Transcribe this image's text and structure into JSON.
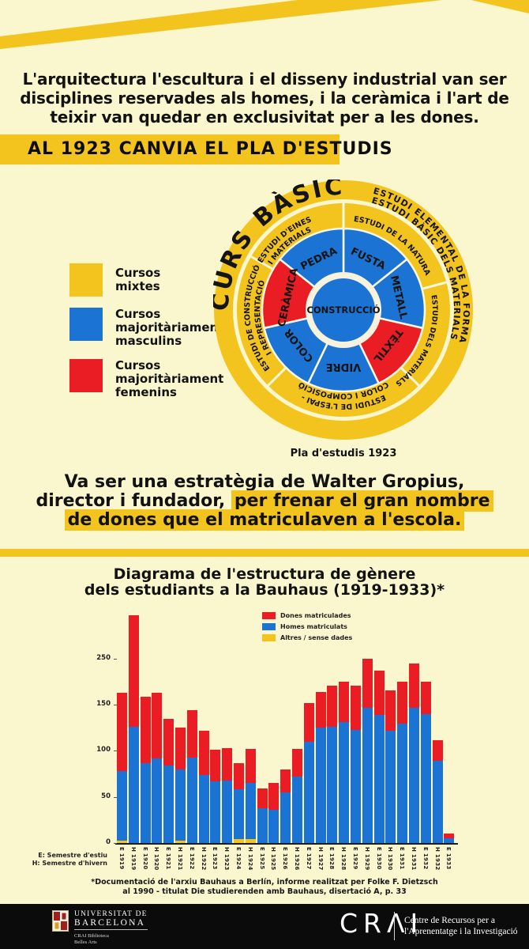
{
  "palette": {
    "background": "#FAF6CE",
    "gold": "#F2C41D",
    "blue": "#1B73D3",
    "red": "#EA1C24",
    "black": "#0b0b0b"
  },
  "intro": {
    "l1": "L'arquitectura l'escultura i el disseny industrial van ser",
    "l2": "disciplines reservades als homes, i la ceràmica i l'art de",
    "l3": "teixir van quedar en exclusivitat per a les dones."
  },
  "headline": "AL 1923 CANVIA EL PLA D'ESTUDIS",
  "legend": {
    "items": [
      {
        "label": "Cursos mixtes",
        "color": "#F2C41D"
      },
      {
        "label": "Cursos majoritàriament masculins",
        "color": "#1B73D3"
      },
      {
        "label": "Cursos majoritàriament femenins",
        "color": "#EA1C24"
      }
    ]
  },
  "wheel": {
    "outer_title": "CURS BÀSIC",
    "outer_arc_l1": "ESTUDI ELEMENTAL DE LA FORMA",
    "outer_arc_l2": "ESTUDI BÀSIC DELS MATERIALS",
    "ring": {
      "eines_l1": "ESTUDI D'EINES",
      "eines_l2": "I MATERIALS",
      "natura": "ESTUDI DE LA NATURA",
      "materials": "ESTUDI DELS MATERIALS",
      "espai_l1": "ESTUDI DE L'ESPAI -",
      "espai_l2": "COLOR I COMPOSICIÓ",
      "construccio_l1": "ESTUDI DE CONSTRUCCIÓ",
      "construccio_l2": "I REPRESENTACIÓ"
    },
    "segments": [
      {
        "label": "FUSTA",
        "type": "masculí"
      },
      {
        "label": "METALL",
        "type": "masculí"
      },
      {
        "label": "TÈXTIL",
        "type": "femení"
      },
      {
        "label": "VIDRE",
        "type": "masculí"
      },
      {
        "label": "COLOR",
        "type": "masculí"
      },
      {
        "label": "CERÀMICA",
        "type": "femení"
      },
      {
        "label": "PEDRA",
        "type": "masculí"
      }
    ],
    "center": "CONSTRUCCIÓ",
    "caption": "Pla d'estudis 1923"
  },
  "strategy": {
    "l1": "Va ser una estratègia de Walter Gropius,",
    "l2_plain": "director i fundador, ",
    "l2_hl": "per frenar el gran nombre",
    "l3_hl": "de dones que el matriculaven a l'escola."
  },
  "chart_data": {
    "type": "bar",
    "stacked": true,
    "title_l1": "Diagrama de l'estructura de gènere",
    "title_l2": "dels estudiants a la Bauhaus (1919-1933)*",
    "categories": [
      "E 1919",
      "H 1919",
      "E 1920",
      "H 1920",
      "E 1921",
      "H 1921",
      "E 1922",
      "H 1922",
      "E 1923",
      "H 1923",
      "E 1924",
      "H 1924",
      "E 1925",
      "H 1925",
      "E 1926",
      "H 1926",
      "E 1927",
      "H 1927",
      "E 1928",
      "H 1928",
      "E 1929",
      "H 1929",
      "E 1930",
      "H 1930",
      "E 1931",
      "H 1931",
      "E 1932",
      "H 1932",
      "E 1933"
    ],
    "series": [
      {
        "name": "Dones matriculades",
        "color": "#EA1C24",
        "values": [
          85,
          121,
          72,
          71,
          51,
          45,
          51,
          48,
          34,
          35,
          29,
          37,
          21,
          29,
          25,
          30,
          42,
          39,
          45,
          44,
          48,
          53,
          48,
          44,
          45,
          48,
          35,
          23,
          5
        ]
      },
      {
        "name": "Homes matriculats",
        "color": "#1B73D3",
        "values": [
          75,
          126,
          87,
          92,
          84,
          77,
          93,
          74,
          67,
          68,
          54,
          61,
          38,
          36,
          55,
          72,
          110,
          125,
          126,
          131,
          123,
          147,
          139,
          122,
          130,
          147,
          140,
          89,
          5
        ]
      },
      {
        "name": "Altres / sense dades",
        "color": "#F2C41D",
        "values": [
          3,
          0,
          0,
          0,
          0,
          3,
          0,
          0,
          0,
          0,
          4,
          4,
          0,
          0,
          0,
          0,
          0,
          0,
          0,
          0,
          0,
          0,
          0,
          0,
          0,
          0,
          0,
          0,
          0
        ]
      }
    ],
    "y_ticks": [
      0,
      50,
      100,
      150,
      250
    ],
    "legend_position": "top-center",
    "axis_note_l1": "E: Semestre d'estiu",
    "axis_note_l2": "H: Semestre d'hivern",
    "footnote_l1": "*Documentació de l'arxiu Bauhaus a Berlín, informe realitzat per Folke F. Dietzsch",
    "footnote_l2": "al 1990 - titulat Die studierenden amb Bauhaus, disertació A, p. 33"
  },
  "footer": {
    "ub_l1": "UNIVERSITAT DE",
    "ub_l2": "BARCELONA",
    "ub_sub_l1": "CRAI Biblioteca",
    "ub_sub_l2": "Belles Arts",
    "crai_mark": "CRΛI",
    "crai_desc_l1": "Centre de Recursos per a",
    "crai_desc_l2": "l'Aprenentatge i la Investigació"
  }
}
